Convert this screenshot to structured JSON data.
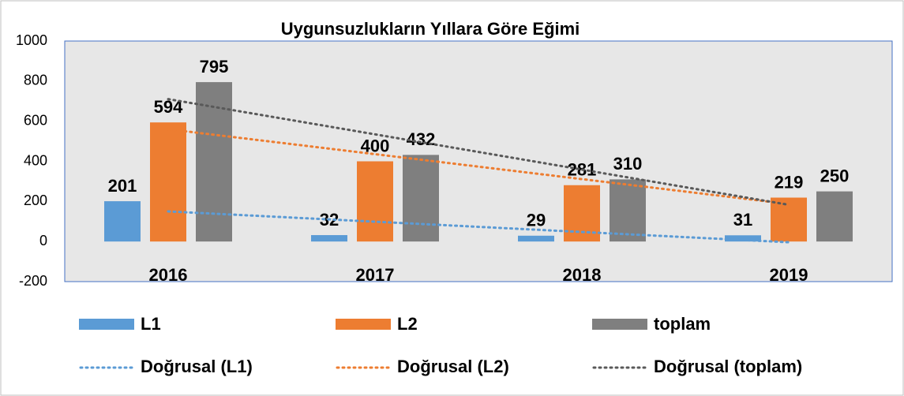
{
  "chart_data": {
    "type": "bar",
    "title": "Uygunsuzlukların Yıllara Göre Eğimi",
    "categories": [
      "2016",
      "2017",
      "2018",
      "2019"
    ],
    "series": [
      {
        "name": "L1",
        "color": "#5b9bd5",
        "values": [
          201,
          32,
          29,
          31
        ],
        "trendline": "Doğrusal (L1)"
      },
      {
        "name": "L2",
        "color": "#ed7d31",
        "values": [
          594,
          400,
          281,
          219
        ],
        "trendline": "Doğrusal (L2)"
      },
      {
        "name": "toplam",
        "color": "#7f7f7f",
        "values": [
          795,
          432,
          310,
          250
        ],
        "trendline": "Doğrusal (toplam)"
      }
    ],
    "ylim": [
      -200,
      1000
    ],
    "yticks": [
      -200,
      0,
      200,
      400,
      600,
      800,
      1000
    ],
    "legend": "bottom"
  }
}
